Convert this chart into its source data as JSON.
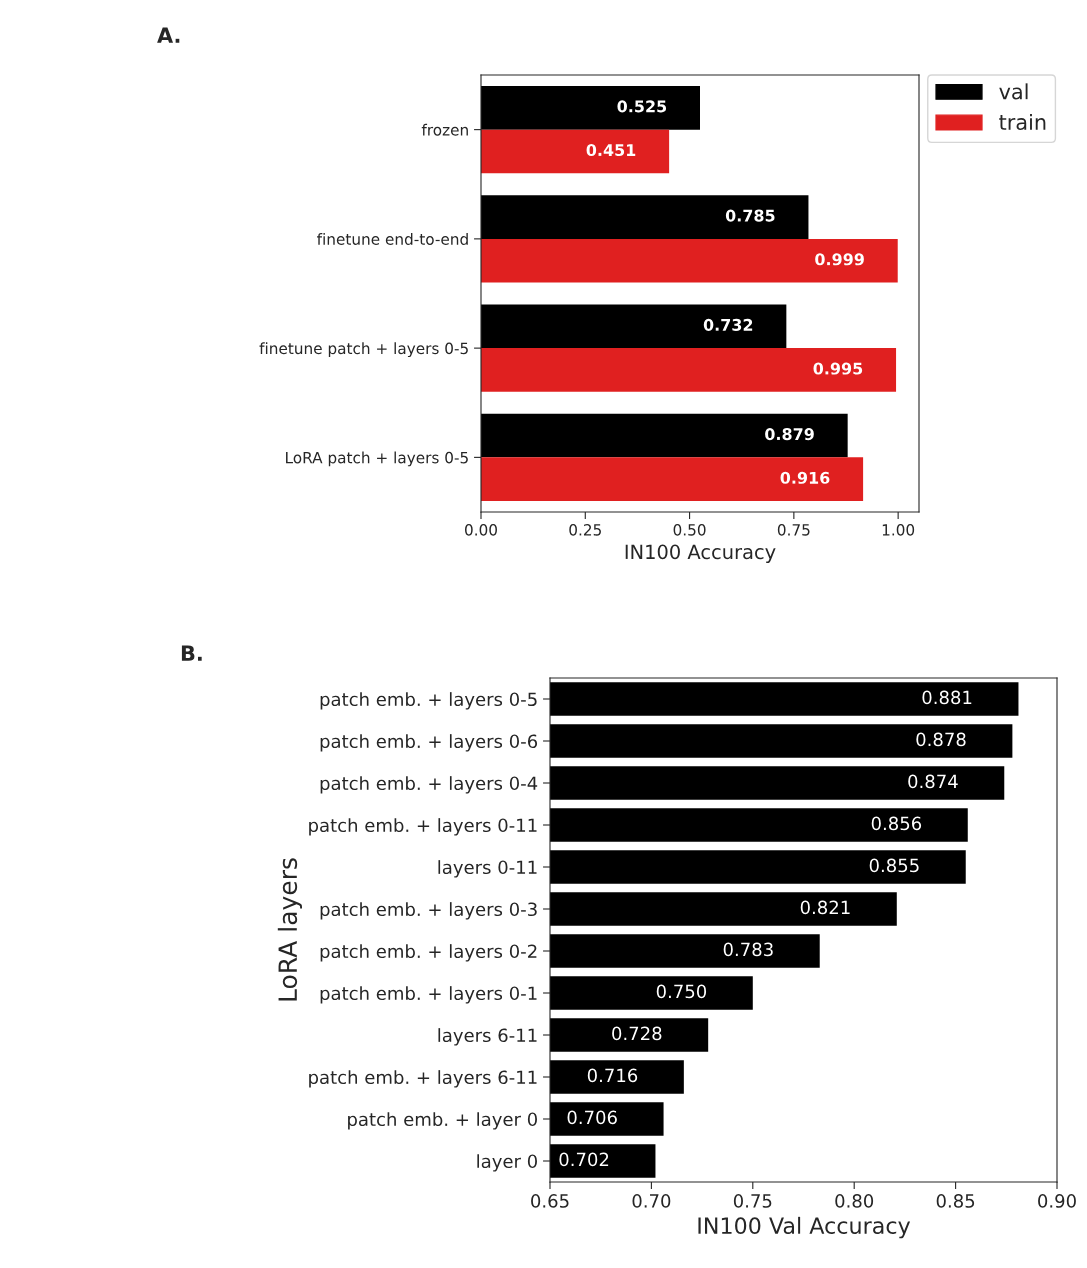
{
  "chart_data": [
    {
      "type": "bar",
      "title": "A.",
      "orientation": "horizontal",
      "categories": [
        "frozen",
        "finetune end-to-end",
        "finetune patch + layers 0-5",
        "LoRA patch + layers 0-5"
      ],
      "series": [
        {
          "name": "val",
          "color": "#000000",
          "values": [
            0.525,
            0.785,
            0.732,
            0.879
          ]
        },
        {
          "name": "train",
          "color": "#e02020",
          "values": [
            0.451,
            0.999,
            0.995,
            0.916
          ]
        }
      ],
      "xlabel": "IN100 Accuracy",
      "xlim": [
        0,
        1.05
      ],
      "xticks": [
        {
          "value": 0,
          "label": "0.00"
        },
        {
          "value": 0.25,
          "label": "0.25"
        },
        {
          "value": 0.5,
          "label": "0.50"
        },
        {
          "value": 0.75,
          "label": "0.75"
        },
        {
          "value": 1,
          "label": "1.00"
        }
      ],
      "data_labels": true,
      "legend": "top right",
      "grid": false
    },
    {
      "type": "bar",
      "title": "B.",
      "orientation": "horizontal",
      "categories": [
        "patch emb. + layers 0-5",
        "patch emb. + layers 0-6",
        "patch emb. + layers 0-4",
        "patch emb. + layers 0-11",
        "layers 0-11",
        "patch emb. + layers 0-3",
        "patch emb. + layers 0-2",
        "patch emb. + layers 0-1",
        "layers 6-11",
        "patch emb. + layers 6-11",
        "patch emb. + layer 0",
        "layer 0"
      ],
      "values": [
        0.881,
        0.878,
        0.874,
        0.856,
        0.855,
        0.821,
        0.783,
        0.75,
        0.728,
        0.716,
        0.706,
        0.702
      ],
      "value_labels": [
        "0.881",
        "0.878",
        "0.874",
        "0.856",
        "0.855",
        "0.821",
        "0.783",
        "0.750",
        "0.728",
        "0.716",
        "0.706",
        "0.702"
      ],
      "color": "#000000",
      "xlabel": "IN100 Val Accuracy",
      "ylabel": "LoRA layers",
      "xlim": [
        0.65,
        0.9
      ],
      "xticks": [
        {
          "value": 0.65,
          "label": "0.65"
        },
        {
          "value": 0.7,
          "label": "0.70"
        },
        {
          "value": 0.75,
          "label": "0.75"
        },
        {
          "value": 0.8,
          "label": "0.80"
        },
        {
          "value": 0.85,
          "label": "0.85"
        },
        {
          "value": 0.9,
          "label": "0.90"
        }
      ],
      "grid": false
    }
  ]
}
